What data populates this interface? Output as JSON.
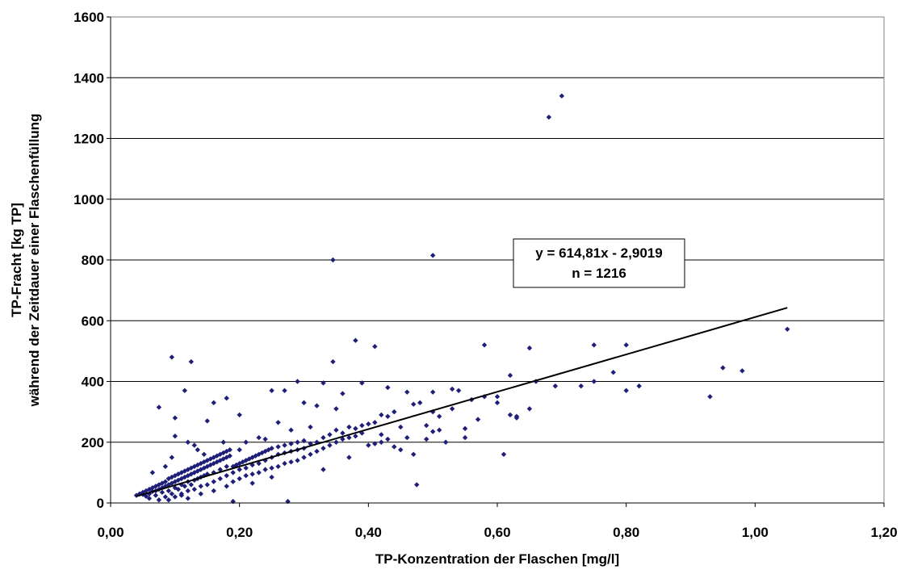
{
  "chart_data": {
    "type": "scatter",
    "title": "",
    "xlabel": "TP-Konzentration der Flaschen [mg/l]",
    "ylabel_lines": [
      "TP-Fracht [kg TP]",
      "während der Zeitdauer einer Flaschenfüllung"
    ],
    "xlim": [
      0,
      1.2
    ],
    "ylim": [
      0,
      1600
    ],
    "x_ticks": [
      0,
      0.2,
      0.4,
      0.6,
      0.8,
      1.0,
      1.2
    ],
    "x_tick_labels": [
      "0,00",
      "0,20",
      "0,40",
      "0,60",
      "0,80",
      "1,00",
      "1,20"
    ],
    "y_ticks": [
      0,
      200,
      400,
      600,
      800,
      1000,
      1200,
      1400,
      1600
    ],
    "y_tick_labels": [
      "0",
      "200",
      "400",
      "600",
      "800",
      "1000",
      "1200",
      "1400",
      "1600"
    ],
    "grid": "horizontal",
    "marker_color": "#1f1f7a",
    "trendline": {
      "slope": 614.81,
      "intercept": -2.9019,
      "x_range": [
        0.04,
        1.05
      ],
      "color": "#000000",
      "equation_label": "y = 614,81x - 2,9019",
      "n_label": "n = 1216"
    },
    "series": [
      {
        "points": [
          [
            0.04,
            25
          ],
          [
            0.045,
            30
          ],
          [
            0.05,
            28
          ],
          [
            0.05,
            35
          ],
          [
            0.055,
            40
          ],
          [
            0.055,
            22
          ],
          [
            0.06,
            45
          ],
          [
            0.06,
            30
          ],
          [
            0.06,
            15
          ],
          [
            0.065,
            50
          ],
          [
            0.065,
            38
          ],
          [
            0.07,
            55
          ],
          [
            0.07,
            40
          ],
          [
            0.07,
            25
          ],
          [
            0.075,
            60
          ],
          [
            0.075,
            45
          ],
          [
            0.075,
            10
          ],
          [
            0.08,
            65
          ],
          [
            0.08,
            50
          ],
          [
            0.08,
            35
          ],
          [
            0.085,
            70
          ],
          [
            0.085,
            55
          ],
          [
            0.085,
            20
          ],
          [
            0.09,
            80
          ],
          [
            0.09,
            60
          ],
          [
            0.09,
            40
          ],
          [
            0.095,
            85
          ],
          [
            0.095,
            65
          ],
          [
            0.095,
            30
          ],
          [
            0.1,
            90
          ],
          [
            0.1,
            70
          ],
          [
            0.1,
            50
          ],
          [
            0.1,
            20
          ],
          [
            0.105,
            95
          ],
          [
            0.105,
            75
          ],
          [
            0.105,
            45
          ],
          [
            0.11,
            100
          ],
          [
            0.11,
            80
          ],
          [
            0.11,
            60
          ],
          [
            0.11,
            30
          ],
          [
            0.115,
            105
          ],
          [
            0.115,
            85
          ],
          [
            0.115,
            55
          ],
          [
            0.12,
            110
          ],
          [
            0.12,
            90
          ],
          [
            0.12,
            70
          ],
          [
            0.12,
            40
          ],
          [
            0.125,
            115
          ],
          [
            0.125,
            95
          ],
          [
            0.125,
            60
          ],
          [
            0.13,
            120
          ],
          [
            0.13,
            100
          ],
          [
            0.13,
            75
          ],
          [
            0.13,
            45
          ],
          [
            0.135,
            125
          ],
          [
            0.135,
            105
          ],
          [
            0.135,
            80
          ],
          [
            0.14,
            130
          ],
          [
            0.14,
            110
          ],
          [
            0.14,
            85
          ],
          [
            0.14,
            55
          ],
          [
            0.145,
            135
          ],
          [
            0.145,
            115
          ],
          [
            0.145,
            90
          ],
          [
            0.15,
            140
          ],
          [
            0.15,
            120
          ],
          [
            0.15,
            95
          ],
          [
            0.15,
            60
          ],
          [
            0.155,
            145
          ],
          [
            0.155,
            125
          ],
          [
            0.16,
            150
          ],
          [
            0.16,
            130
          ],
          [
            0.16,
            100
          ],
          [
            0.16,
            70
          ],
          [
            0.165,
            155
          ],
          [
            0.165,
            135
          ],
          [
            0.17,
            160
          ],
          [
            0.17,
            140
          ],
          [
            0.17,
            110
          ],
          [
            0.17,
            80
          ],
          [
            0.175,
            165
          ],
          [
            0.175,
            145
          ],
          [
            0.18,
            170
          ],
          [
            0.18,
            150
          ],
          [
            0.18,
            120
          ],
          [
            0.18,
            90
          ],
          [
            0.185,
            175
          ],
          [
            0.185,
            155
          ],
          [
            0.19,
            120
          ],
          [
            0.19,
            100
          ],
          [
            0.19,
            70
          ],
          [
            0.195,
            125
          ],
          [
            0.2,
            130
          ],
          [
            0.2,
            110
          ],
          [
            0.2,
            80
          ],
          [
            0.205,
            135
          ],
          [
            0.21,
            140
          ],
          [
            0.21,
            115
          ],
          [
            0.21,
            90
          ],
          [
            0.215,
            145
          ],
          [
            0.22,
            150
          ],
          [
            0.22,
            125
          ],
          [
            0.22,
            95
          ],
          [
            0.225,
            155
          ],
          [
            0.23,
            160
          ],
          [
            0.23,
            130
          ],
          [
            0.23,
            100
          ],
          [
            0.235,
            165
          ],
          [
            0.24,
            170
          ],
          [
            0.24,
            140
          ],
          [
            0.24,
            110
          ],
          [
            0.245,
            175
          ],
          [
            0.25,
            180
          ],
          [
            0.25,
            150
          ],
          [
            0.25,
            115
          ],
          [
            0.26,
            185
          ],
          [
            0.26,
            160
          ],
          [
            0.26,
            120
          ],
          [
            0.27,
            190
          ],
          [
            0.27,
            165
          ],
          [
            0.27,
            130
          ],
          [
            0.28,
            195
          ],
          [
            0.28,
            170
          ],
          [
            0.28,
            135
          ],
          [
            0.29,
            200
          ],
          [
            0.29,
            175
          ],
          [
            0.29,
            140
          ],
          [
            0.3,
            205
          ],
          [
            0.3,
            180
          ],
          [
            0.3,
            150
          ],
          [
            0.31,
            195
          ],
          [
            0.31,
            160
          ],
          [
            0.32,
            200
          ],
          [
            0.32,
            170
          ],
          [
            0.33,
            215
          ],
          [
            0.33,
            180
          ],
          [
            0.34,
            225
          ],
          [
            0.34,
            190
          ],
          [
            0.35,
            240
          ],
          [
            0.35,
            200
          ],
          [
            0.36,
            230
          ],
          [
            0.36,
            210
          ],
          [
            0.37,
            250
          ],
          [
            0.37,
            215
          ],
          [
            0.38,
            245
          ],
          [
            0.38,
            220
          ],
          [
            0.39,
            255
          ],
          [
            0.39,
            230
          ],
          [
            0.4,
            260
          ],
          [
            0.4,
            190
          ],
          [
            0.41,
            265
          ],
          [
            0.41,
            195
          ],
          [
            0.42,
            290
          ],
          [
            0.42,
            200
          ],
          [
            0.43,
            285
          ],
          [
            0.43,
            210
          ],
          [
            0.44,
            300
          ],
          [
            0.44,
            185
          ],
          [
            0.45,
            175
          ],
          [
            0.46,
            215
          ],
          [
            0.47,
            160
          ],
          [
            0.48,
            330
          ],
          [
            0.49,
            210
          ],
          [
            0.5,
            300
          ],
          [
            0.5,
            235
          ],
          [
            0.51,
            240
          ],
          [
            0.52,
            200
          ],
          [
            0.53,
            310
          ],
          [
            0.54,
            370
          ],
          [
            0.55,
            245
          ],
          [
            0.56,
            340
          ],
          [
            0.58,
            350
          ],
          [
            0.6,
            330
          ],
          [
            0.62,
            290
          ],
          [
            0.63,
            280
          ],
          [
            0.65,
            310
          ],
          [
            0.66,
            400
          ],
          [
            0.7,
            1340
          ],
          [
            0.68,
            1270
          ],
          [
            0.345,
            800
          ],
          [
            0.5,
            815
          ],
          [
            0.095,
            480
          ],
          [
            0.125,
            465
          ],
          [
            0.38,
            535
          ],
          [
            0.41,
            515
          ],
          [
            0.345,
            465
          ],
          [
            0.2,
            290
          ],
          [
            0.18,
            345
          ],
          [
            0.16,
            330
          ],
          [
            0.15,
            270
          ],
          [
            0.29,
            400
          ],
          [
            0.27,
            370
          ],
          [
            0.33,
            395
          ],
          [
            0.36,
            360
          ],
          [
            0.43,
            380
          ],
          [
            0.46,
            365
          ],
          [
            0.5,
            365
          ],
          [
            0.53,
            375
          ],
          [
            0.58,
            520
          ],
          [
            0.65,
            510
          ],
          [
            0.62,
            420
          ],
          [
            0.75,
            520
          ],
          [
            0.8,
            520
          ],
          [
            0.73,
            385
          ],
          [
            0.8,
            370
          ],
          [
            0.82,
            385
          ],
          [
            0.93,
            350
          ],
          [
            0.95,
            445
          ],
          [
            0.98,
            435
          ],
          [
            1.05,
            572
          ],
          [
            0.61,
            160
          ],
          [
            0.475,
            60
          ],
          [
            0.275,
            5
          ],
          [
            0.19,
            5
          ],
          [
            0.115,
            370
          ],
          [
            0.075,
            315
          ],
          [
            0.1,
            280
          ],
          [
            0.12,
            200
          ],
          [
            0.135,
            175
          ],
          [
            0.1,
            220
          ],
          [
            0.21,
            200
          ],
          [
            0.23,
            215
          ],
          [
            0.25,
            370
          ],
          [
            0.26,
            265
          ],
          [
            0.3,
            330
          ],
          [
            0.32,
            320
          ],
          [
            0.35,
            310
          ],
          [
            0.39,
            395
          ],
          [
            0.42,
            225
          ],
          [
            0.45,
            250
          ],
          [
            0.47,
            325
          ],
          [
            0.49,
            255
          ],
          [
            0.51,
            285
          ],
          [
            0.55,
            215
          ],
          [
            0.57,
            275
          ],
          [
            0.6,
            350
          ],
          [
            0.63,
            285
          ],
          [
            0.69,
            385
          ],
          [
            0.75,
            400
          ],
          [
            0.78,
            430
          ],
          [
            0.095,
            150
          ],
          [
            0.085,
            120
          ],
          [
            0.065,
            100
          ],
          [
            0.13,
            190
          ],
          [
            0.145,
            160
          ],
          [
            0.175,
            200
          ],
          [
            0.2,
            175
          ],
          [
            0.24,
            210
          ],
          [
            0.28,
            240
          ],
          [
            0.31,
            250
          ],
          [
            0.11,
            25
          ],
          [
            0.14,
            30
          ],
          [
            0.16,
            40
          ],
          [
            0.12,
            15
          ],
          [
            0.09,
            10
          ],
          [
            0.18,
            55
          ],
          [
            0.22,
            65
          ],
          [
            0.25,
            85
          ],
          [
            0.33,
            110
          ],
          [
            0.37,
            150
          ]
        ]
      }
    ]
  }
}
